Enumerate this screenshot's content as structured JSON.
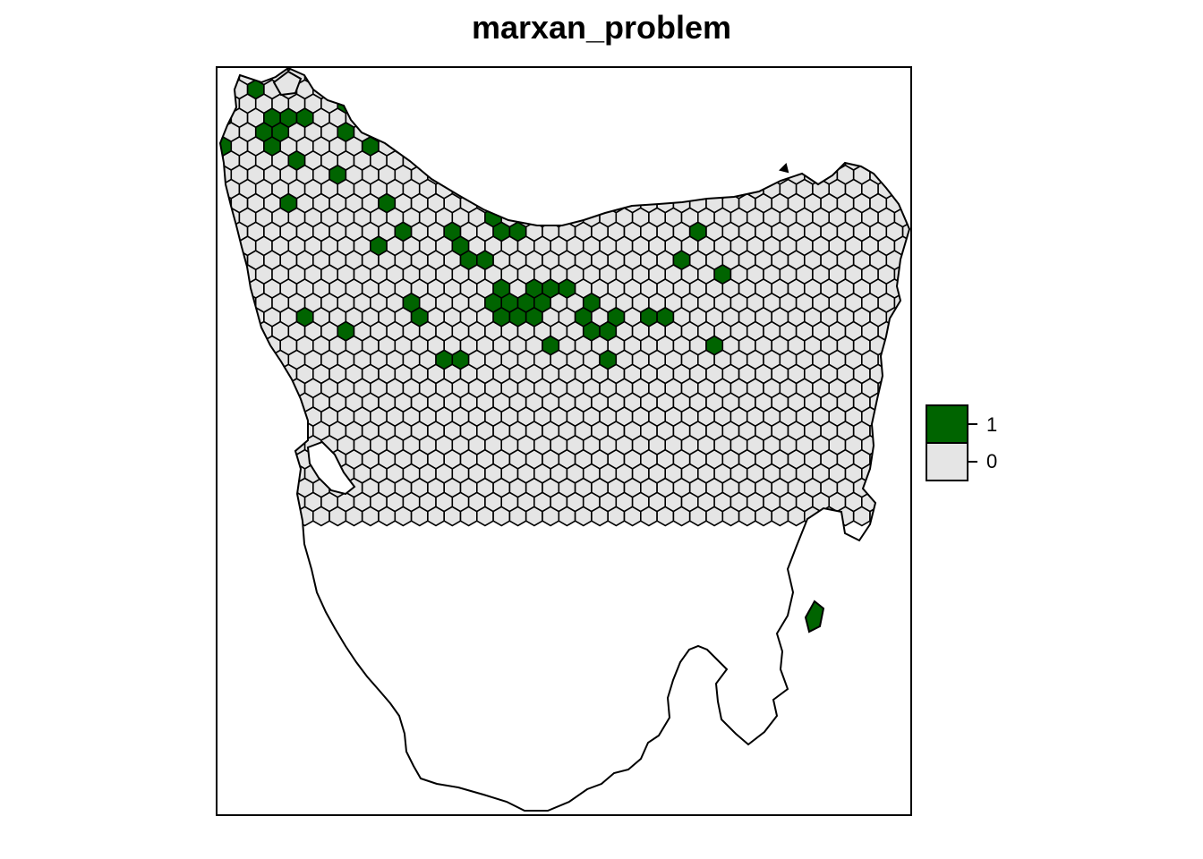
{
  "title": "marxan_problem",
  "colors": {
    "selected": "#006400",
    "unselected": "#e5e5e5",
    "outline": "#000000",
    "background": "#ffffff"
  },
  "legend": {
    "position": "right",
    "entries": [
      {
        "label": "1",
        "color": "#006400"
      },
      {
        "label": "0",
        "color": "#e5e5e5"
      }
    ]
  },
  "map": {
    "region": "Tasmania planning units (hexagonal grid)",
    "selected_units": [
      [
        0,
        3
      ],
      [
        0,
        5
      ],
      [
        2,
        1
      ],
      [
        3,
        3
      ],
      [
        3,
        4
      ],
      [
        3,
        5
      ],
      [
        4,
        3
      ],
      [
        4,
        4
      ],
      [
        4,
        9
      ],
      [
        5,
        3
      ],
      [
        5,
        6
      ],
      [
        5,
        17
      ],
      [
        7,
        7
      ],
      [
        8,
        2
      ],
      [
        8,
        4
      ],
      [
        8,
        18
      ],
      [
        9,
        5
      ],
      [
        10,
        9
      ],
      [
        10,
        12
      ],
      [
        11,
        11
      ],
      [
        12,
        16
      ],
      [
        12,
        17
      ],
      [
        13,
        5
      ],
      [
        14,
        11
      ],
      [
        14,
        20
      ],
      [
        15,
        4
      ],
      [
        15,
        12
      ],
      [
        15,
        13
      ],
      [
        15,
        20
      ],
      [
        16,
        13
      ],
      [
        17,
        10
      ],
      [
        17,
        11
      ],
      [
        17,
        15
      ],
      [
        17,
        16
      ],
      [
        17,
        17
      ],
      [
        18,
        11
      ],
      [
        18,
        16
      ],
      [
        18,
        17
      ],
      [
        19,
        15
      ],
      [
        19,
        16
      ],
      [
        19,
        17
      ],
      [
        20,
        15
      ],
      [
        20,
        16
      ],
      [
        20,
        19
      ],
      [
        21,
        15
      ],
      [
        22,
        2
      ],
      [
        22,
        6
      ],
      [
        22,
        17
      ],
      [
        23,
        16
      ],
      [
        23,
        18
      ],
      [
        24,
        17
      ],
      [
        24,
        18
      ],
      [
        24,
        20
      ],
      [
        25,
        2
      ],
      [
        26,
        6
      ],
      [
        26,
        17
      ],
      [
        27,
        17
      ],
      [
        28,
        13
      ],
      [
        29,
        11
      ],
      [
        30,
        19
      ],
      [
        31,
        3
      ],
      [
        31,
        14
      ]
    ]
  }
}
